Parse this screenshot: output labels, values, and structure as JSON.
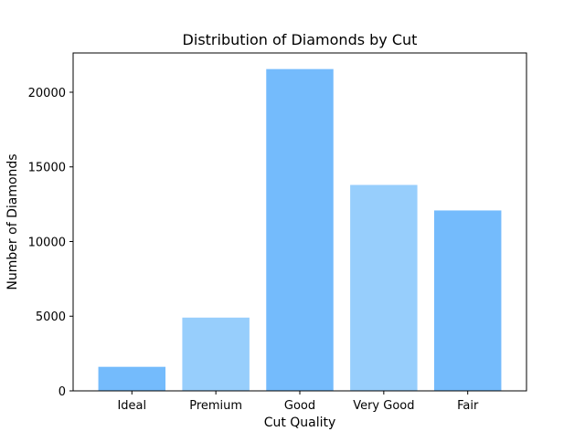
{
  "chart_data": {
    "type": "bar",
    "title": "Distribution of Diamonds by Cut",
    "xlabel": "Cut Quality",
    "ylabel": "Number of Diamonds",
    "categories": [
      "Ideal",
      "Premium",
      "Good",
      "Very Good",
      "Fair"
    ],
    "values": [
      1610,
      4906,
      21551,
      13791,
      12082
    ],
    "colors": [
      "#74bbfc",
      "#97cefc",
      "#74bbfc",
      "#97cefc",
      "#74bbfc"
    ],
    "ylim": [
      0,
      22629
    ],
    "yticks": [
      0,
      5000,
      10000,
      15000,
      20000
    ],
    "grid": false,
    "legend": "none"
  }
}
